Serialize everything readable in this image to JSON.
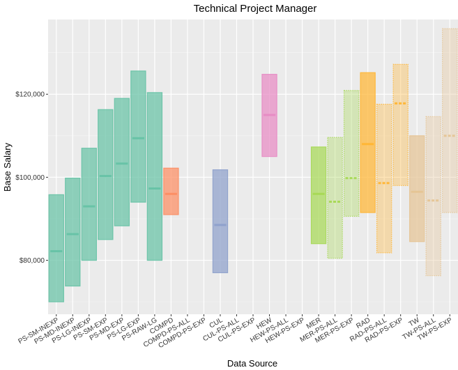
{
  "chart_data": {
    "type": "range-bar",
    "title": "Technical Project Manager",
    "xlabel": "Data Source",
    "ylabel": "Base Salary",
    "ylim": [
      67000,
      138000
    ],
    "yticks": [
      80000,
      100000,
      120000
    ],
    "ytick_labels": [
      "$80,000",
      "$100,000",
      "$120,000"
    ],
    "grid": true,
    "categories": [
      "PS-SM-INEXP",
      "PS-MD-INEXP",
      "PS-LG-INEXP",
      "PS-SM-EXP",
      "PS-MD-EXP",
      "PS-LG-EXP",
      "PS-RAW-LG",
      "COMPD",
      "COMPD-PS-ALL",
      "COMPD-PS-EXP",
      "CUL",
      "CUL-PS-ALL",
      "CUL-PS-EXP",
      "HEW",
      "HEW-PS-ALL",
      "HEW-PS-EXP",
      "MER",
      "MER-PS-ALL",
      "MER-PS-EXP",
      "RAD",
      "RAD-PS-ALL",
      "RAD-PS-EXP",
      "TW",
      "TW-PS-ALL",
      "TW-PS-EXP"
    ],
    "series": [
      {
        "name": "PS-SM-INEXP",
        "low": 70000,
        "median": 82200,
        "high": 95800,
        "color": "#66C2A5",
        "style": "solid"
      },
      {
        "name": "PS-MD-INEXP",
        "low": 73800,
        "median": 86300,
        "high": 99800,
        "color": "#66C2A5",
        "style": "solid"
      },
      {
        "name": "PS-LG-INEXP",
        "low": 80000,
        "median": 93000,
        "high": 107000,
        "color": "#66C2A5",
        "style": "solid"
      },
      {
        "name": "PS-SM-EXP",
        "low": 85000,
        "median": 100300,
        "high": 116300,
        "color": "#66C2A5",
        "style": "solid"
      },
      {
        "name": "PS-MD-EXP",
        "low": 88300,
        "median": 103300,
        "high": 119000,
        "color": "#66C2A5",
        "style": "solid"
      },
      {
        "name": "PS-LG-EXP",
        "low": 94000,
        "median": 109400,
        "high": 125600,
        "color": "#66C2A5",
        "style": "solid"
      },
      {
        "name": "PS-RAW-LG",
        "low": 80000,
        "median": 97300,
        "high": 120400,
        "color": "#66C2A5",
        "style": "solid"
      },
      {
        "name": "COMPD",
        "low": 91000,
        "median": 96000,
        "high": 102200,
        "color": "#FC8D62",
        "style": "solid"
      },
      {
        "name": "CUL",
        "low": 77000,
        "median": 88500,
        "high": 101800,
        "color": "#8DA0CB",
        "style": "solid"
      },
      {
        "name": "HEW",
        "low": 105000,
        "median": 115000,
        "high": 124800,
        "color": "#E78AC3",
        "style": "solid"
      },
      {
        "name": "MER",
        "low": 84000,
        "median": 96000,
        "high": 107300,
        "color": "#A6D854",
        "style": "solid"
      },
      {
        "name": "MER-PS-ALL",
        "low": 80500,
        "median": 94100,
        "high": 109600,
        "color": "#A6D854",
        "style": "dotted"
      },
      {
        "name": "MER-PS-EXP",
        "low": 90600,
        "median": 99800,
        "high": 120900,
        "color": "#A6D854",
        "style": "dotted"
      },
      {
        "name": "RAD",
        "low": 91500,
        "median": 108000,
        "high": 125200,
        "color": "#FFB533",
        "style": "solid"
      },
      {
        "name": "RAD-PS-ALL",
        "low": 81800,
        "median": 98600,
        "high": 117600,
        "color": "#FFB533",
        "style": "dotted"
      },
      {
        "name": "RAD-PS-EXP",
        "low": 98000,
        "median": 117800,
        "high": 127200,
        "color": "#FFB533",
        "style": "dotted"
      },
      {
        "name": "TW",
        "low": 84500,
        "median": 96500,
        "high": 110000,
        "color": "#E5C494",
        "style": "solid"
      },
      {
        "name": "TW-PS-ALL",
        "low": 76300,
        "median": 94400,
        "high": 114600,
        "color": "#E5C494",
        "style": "dotted"
      },
      {
        "name": "TW-PS-EXP",
        "low": 91500,
        "median": 110000,
        "high": 135800,
        "color": "#E5C494",
        "style": "dotted"
      }
    ]
  }
}
